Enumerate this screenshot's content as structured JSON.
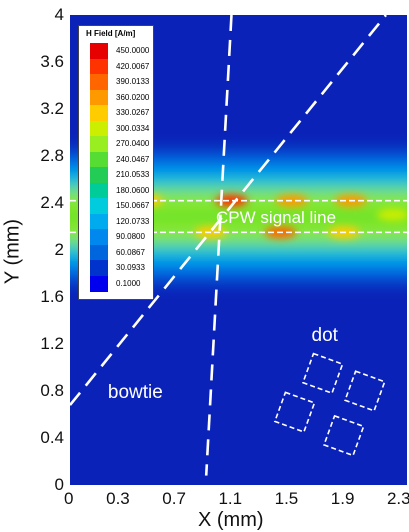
{
  "chart_data": {
    "type": "heatmap",
    "title": "",
    "xlabel": "X (mm)",
    "ylabel": "Y (mm)",
    "xlim": [
      0,
      2.4
    ],
    "ylim": [
      0,
      4
    ],
    "x_ticks": [
      "0",
      "0.3",
      "0.7",
      "1.1",
      "1.5",
      "1.9",
      "2.3"
    ],
    "x_tick_values": [
      0,
      0.3,
      0.7,
      1.1,
      1.5,
      1.9,
      2.3
    ],
    "y_ticks": [
      "0",
      "0.4",
      "0.8",
      "1.2",
      "1.6",
      "2",
      "2.4",
      "2.8",
      "3.2",
      "3.6",
      "4"
    ],
    "y_tick_values": [
      0,
      0.4,
      0.8,
      1.2,
      1.6,
      2,
      2.4,
      2.8,
      3.2,
      3.6,
      4
    ],
    "colorbar": {
      "title": "H Field [A/m]",
      "levels": [
        "450.0000",
        "420.0067",
        "390.0133",
        "360.0200",
        "330.0267",
        "300.0334",
        "270.0400",
        "240.0467",
        "210.0533",
        "180.0600",
        "150.0667",
        "120.0733",
        "90.0800",
        "60.0867",
        "30.0933",
        "0.1000"
      ],
      "colors": [
        "#e60000",
        "#ff3300",
        "#ff6600",
        "#ff9900",
        "#ffcc00",
        "#ccee00",
        "#99ee22",
        "#55dd33",
        "#22cc55",
        "#00cc99",
        "#00ccdd",
        "#00aaee",
        "#0088ee",
        "#0066dd",
        "#0033cc",
        "#0000ee"
      ],
      "background": "#0a22b8"
    },
    "signal_lines_y": [
      2.42,
      2.15
    ],
    "field_band": {
      "y_min": 1.75,
      "y_max": 2.85
    },
    "hotspots": [
      {
        "x": 1.15,
        "y": 2.42,
        "level": "420.0067"
      },
      {
        "x": 1.5,
        "y": 2.15,
        "level": "390.0133"
      },
      {
        "x": 1.58,
        "y": 2.42,
        "level": "360.0200"
      },
      {
        "x": 2.0,
        "y": 2.42,
        "level": "360.0200"
      },
      {
        "x": 0.55,
        "y": 2.42,
        "level": "330.0267"
      },
      {
        "x": 1.0,
        "y": 2.15,
        "level": "330.0267"
      },
      {
        "x": 0.35,
        "y": 2.15,
        "level": "300.0334"
      },
      {
        "x": 1.95,
        "y": 2.15,
        "level": "330.0267"
      },
      {
        "x": 2.3,
        "y": 2.3,
        "level": "300.0334"
      }
    ],
    "bowtie_lines": [
      {
        "x1": 0.0,
        "y1": 0.68,
        "x2": 2.25,
        "y2": 4.0
      },
      {
        "x1": 1.15,
        "y1": 4.0,
        "x2": 0.97,
        "y2": 0.08
      }
    ],
    "dot_squares": [
      {
        "x": 1.8,
        "y": 0.95,
        "size": 0.22,
        "angle": 20
      },
      {
        "x": 2.1,
        "y": 0.8,
        "size": 0.22,
        "angle": 20
      },
      {
        "x": 1.6,
        "y": 0.62,
        "size": 0.22,
        "angle": 20
      },
      {
        "x": 1.95,
        "y": 0.42,
        "size": 0.22,
        "angle": 20
      }
    ],
    "annotations": {
      "signal_line": "CPW signal line",
      "dot": "dot",
      "bowtie": "bowtie"
    }
  }
}
